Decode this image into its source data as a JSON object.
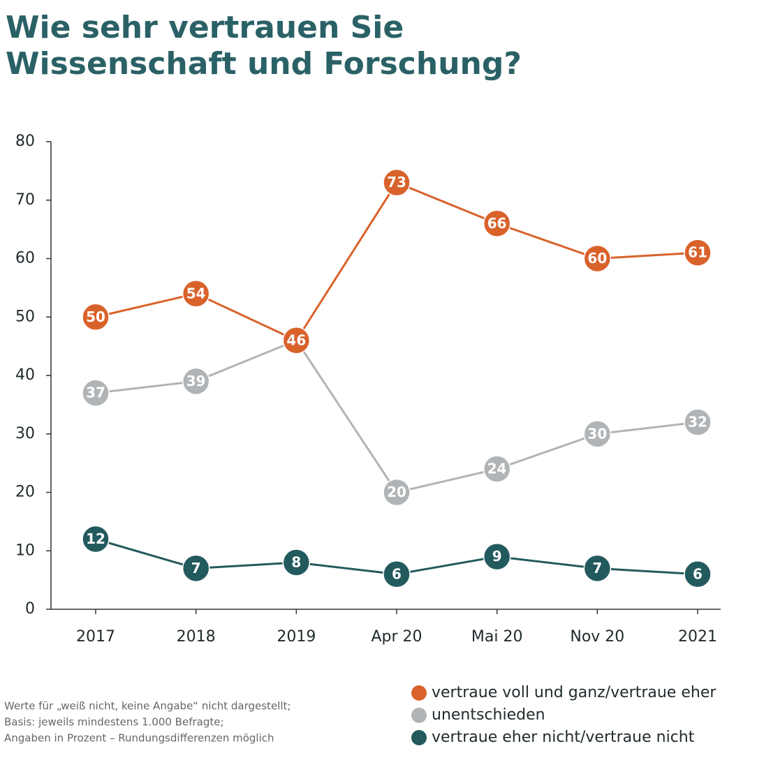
{
  "chart_data": {
    "type": "line",
    "title": [
      "Wie sehr vertrauen Sie",
      "Wissenschaft und Forschung?"
    ],
    "notes": [
      "Werte für „weiß nicht, keine Angabe“ nicht dargestellt;",
      "Basis: jeweils mindestens 1.000 Befragte;",
      "Angaben in Prozent – Rundungsdifferenzen möglich"
    ],
    "categories": [
      "2017",
      "2018",
      "2019",
      "Apr 20",
      "Mai 20",
      "Nov 20",
      "2021"
    ],
    "series": [
      {
        "name": "vertraue voll und ganz/vertraue eher",
        "color": "#d9622b",
        "values": [
          50,
          54,
          46,
          73,
          66,
          60,
          61
        ]
      },
      {
        "name": "unentschieden",
        "color": "#b1b4b6",
        "values": [
          37,
          39,
          46,
          20,
          24,
          30,
          32
        ]
      },
      {
        "name": "vertraue eher nicht/vertraue nicht",
        "color": "#235a5e",
        "values": [
          12,
          7,
          8,
          6,
          9,
          7,
          6
        ]
      }
    ],
    "ylim": [
      0,
      80
    ],
    "yticks": [
      0,
      10,
      20,
      30,
      40,
      50,
      60,
      70,
      80
    ],
    "grid": false,
    "legend": "bottom-right"
  }
}
